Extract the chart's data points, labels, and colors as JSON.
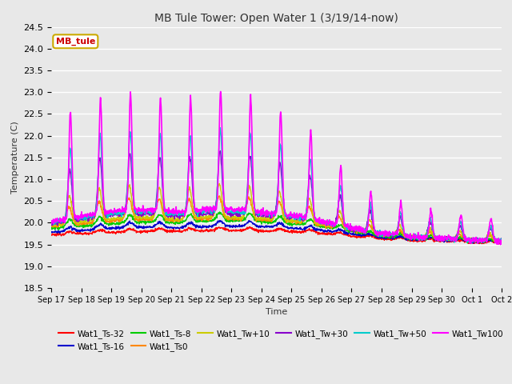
{
  "title": "MB Tule Tower: Open Water 1 (3/19/14-now)",
  "xlabel": "Time",
  "ylabel": "Temperature (C)",
  "ylim": [
    18.5,
    24.5
  ],
  "xlim": [
    0,
    15
  ],
  "xtick_labels": [
    "Sep 17",
    "Sep 18",
    "Sep 19",
    "Sep 20",
    "Sep 21",
    "Sep 22",
    "Sep 23",
    "Sep 24",
    "Sep 25",
    "Sep 26",
    "Sep 27",
    "Sep 28",
    "Sep 29",
    "Sep 30",
    "Oct 1",
    "Oct 2"
  ],
  "ytick_values": [
    18.5,
    19.0,
    19.5,
    20.0,
    20.5,
    21.0,
    21.5,
    22.0,
    22.5,
    23.0,
    23.5,
    24.0,
    24.5
  ],
  "series": {
    "Wat1_Ts-32": {
      "color": "#ff0000",
      "lw": 1.0
    },
    "Wat1_Ts-16": {
      "color": "#0000cc",
      "lw": 1.0
    },
    "Wat1_Ts-8": {
      "color": "#00cc00",
      "lw": 1.0
    },
    "Wat1_Ts0": {
      "color": "#ff8800",
      "lw": 1.0
    },
    "Wat1_Tw+10": {
      "color": "#cccc00",
      "lw": 1.0
    },
    "Wat1_Tw+30": {
      "color": "#8800cc",
      "lw": 1.0
    },
    "Wat1_Tw+50": {
      "color": "#00cccc",
      "lw": 1.0
    },
    "Wat1_Tw100": {
      "color": "#ff00ff",
      "lw": 1.2
    }
  },
  "fig_bg": "#e8e8e8",
  "plot_bg": "#e8e8e8",
  "grid_color": "white",
  "annotation_box": {
    "text": "MB_tule",
    "fc": "white",
    "ec": "#ccaa00",
    "tc": "#cc0000"
  }
}
